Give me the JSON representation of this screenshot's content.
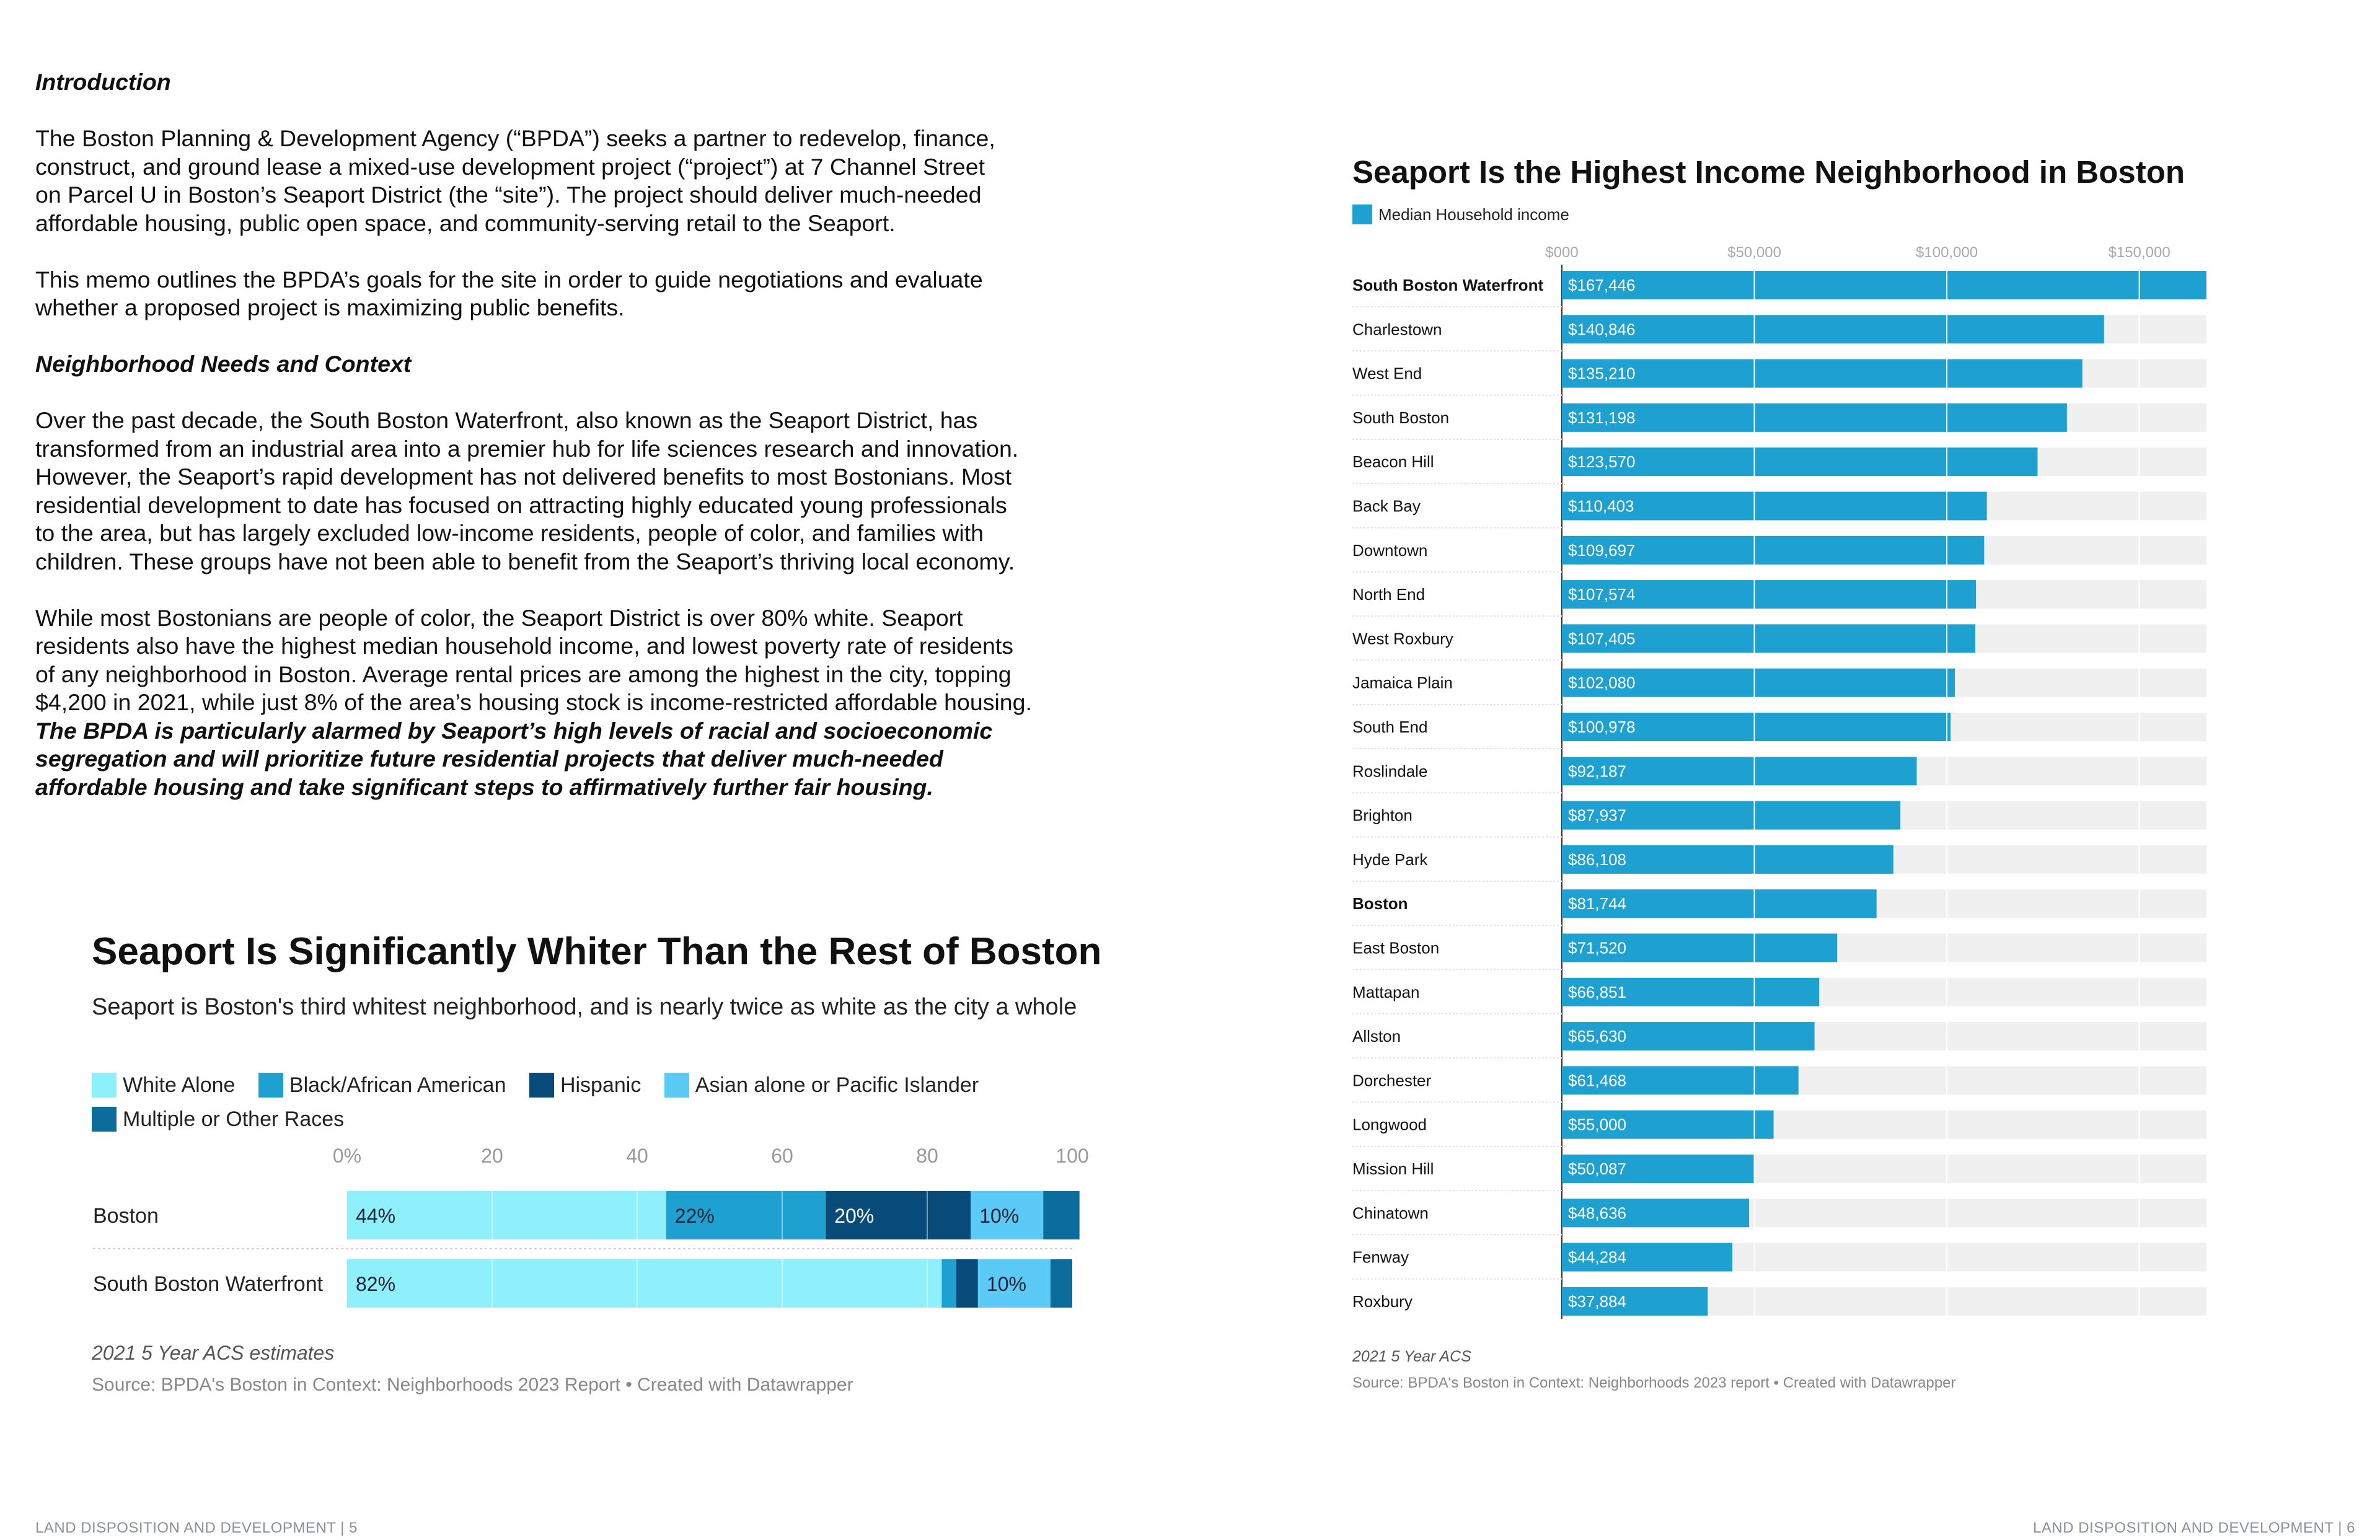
{
  "memo": {
    "intro_heading": "Introduction",
    "intro_p1": [
      "The Boston Planning & Development Agency (“BPDA”) seeks a partner to redevelop, finance,",
      "construct, and ground lease a mixed-use development project (“project”) at 7 Channel Street",
      "on Parcel U in Boston’s Seaport District (the “site”). The project should deliver much-needed",
      "affordable housing, public open space, and community-serving retail to the Seaport."
    ],
    "intro_p2": [
      "This memo outlines the BPDA’s goals for the site in order to guide negotiations and evaluate",
      "whether a proposed project is maximizing public benefits."
    ],
    "needs_heading": "Neighborhood Needs and Context",
    "needs_p1": [
      "Over the past decade, the South Boston Waterfront, also known as the Seaport District, has",
      "transformed from an industrial area into a premier hub for life sciences research and innovation.",
      "However, the Seaport’s rapid development has not delivered benefits to most Bostonians. Most",
      "residential development to date has focused on attracting highly educated young professionals",
      "to the area, but has largely excluded low-income residents, people of color, and families with",
      "children. These groups have not been able to benefit from the Seaport’s thriving local economy."
    ],
    "needs_p2": [
      "While most Bostonians are people of color, the Seaport District is over 80% white. Seaport",
      "residents also have the highest median household income, and lowest poverty rate of residents",
      "of any neighborhood in Boston. Average rental prices are among the highest in the city, topping",
      "$4,200 in 2021, while just 8% of the area’s housing stock is income-restricted affordable housing."
    ],
    "needs_p2_emphasis": [
      "The BPDA is particularly alarmed by Seaport’s high levels of racial and socioeconomic",
      "segregation and will prioritize future residential projects that deliver much-needed",
      "affordable housing and take significant steps to affirmatively further fair housing."
    ]
  },
  "footer": {
    "left": "LAND DISPOSITION AND DEVELOPMENT |  5",
    "right": "LAND DISPOSITION AND DEVELOPMENT |  6"
  },
  "chart_data": [
    {
      "type": "bar",
      "orientation": "horizontal",
      "stacked": true,
      "title": "Seaport Is Significantly Whiter Than the Rest of Boston",
      "subtitle": "Seaport is Boston's third whitest neighborhood, and is nearly twice as white as the city a whole",
      "categories": [
        "Boston",
        "South Boston Waterfront"
      ],
      "xlim": [
        0,
        100
      ],
      "xticks": [
        "0%",
        "20",
        "40",
        "60",
        "80",
        "100"
      ],
      "series": [
        {
          "name": "White Alone",
          "color": "#8ef0fb",
          "values": [
            44,
            82
          ],
          "labels": [
            "44%",
            "82%"
          ]
        },
        {
          "name": "Black/African American",
          "color": "#1ea1d1",
          "values": [
            22,
            2
          ],
          "labels": [
            "22%",
            ""
          ]
        },
        {
          "name": "Hispanic",
          "color": "#094b78",
          "values": [
            20,
            3
          ],
          "labels": [
            "20%",
            ""
          ]
        },
        {
          "name": "Asian alone or Pacific Islander",
          "color": "#5ccaf6",
          "values": [
            10,
            10
          ],
          "labels": [
            "10%",
            "10%"
          ]
        },
        {
          "name": "Multiple or Other Races",
          "color": "#0c6c9c",
          "values": [
            5,
            3
          ],
          "labels": [
            "",
            ""
          ]
        }
      ],
      "legend_position": "top",
      "grid": true,
      "note": "2021 5 Year ACS estimates",
      "source": "Source: BPDA's Boston in Context: Neighborhoods 2023 Report • Created with Datawrapper"
    },
    {
      "type": "bar",
      "orientation": "horizontal",
      "title": "Seaport Is the Highest Income Neighborhood in Boston",
      "series": [
        {
          "name": "Median Household income",
          "color": "#1ea1d1"
        }
      ],
      "categories": [
        "South Boston Waterfront",
        "Charlestown",
        "West End",
        "South Boston",
        "Beacon Hill",
        "Back Bay",
        "Downtown",
        "North End",
        "West Roxbury",
        "Jamaica Plain",
        "South End",
        "Roslindale",
        "Brighton",
        "Hyde Park",
        "Boston",
        "East Boston",
        "Mattapan",
        "Allston",
        "Dorchester",
        "Longwood",
        "Mission Hill",
        "Chinatown",
        "Fenway",
        "Roxbury"
      ],
      "bold_categories": [
        "South Boston Waterfront",
        "Boston"
      ],
      "values": [
        167446,
        140846,
        135210,
        131198,
        123570,
        110403,
        109697,
        107574,
        107405,
        102080,
        100978,
        92187,
        87937,
        86108,
        81744,
        71520,
        66851,
        65630,
        61468,
        55000,
        50087,
        48636,
        44284,
        37884
      ],
      "value_labels": [
        "$167,446",
        "$140,846",
        "$135,210",
        "$131,198",
        "$123,570",
        "$110,403",
        "$109,697",
        "$107,574",
        "$107,405",
        "$102,080",
        "$100,978",
        "$92,187",
        "$87,937",
        "$86,108",
        "$81,744",
        "$71,520",
        "$66,851",
        "$65,630",
        "$61,468",
        "$55,000",
        "$50,087",
        "$48,636",
        "$44,284",
        "$37,884"
      ],
      "xlim": [
        0,
        167446
      ],
      "xticks": [
        0,
        50000,
        100000,
        150000
      ],
      "xtick_labels": [
        "$000",
        "$50,000",
        "$100,000",
        "$150,000"
      ],
      "grid": true,
      "legend_position": "top-left",
      "note": "2021 5 Year ACS",
      "source": "Source: BPDA's Boston in Context: Neighborhoods 2023 report • Created with Datawrapper"
    }
  ]
}
